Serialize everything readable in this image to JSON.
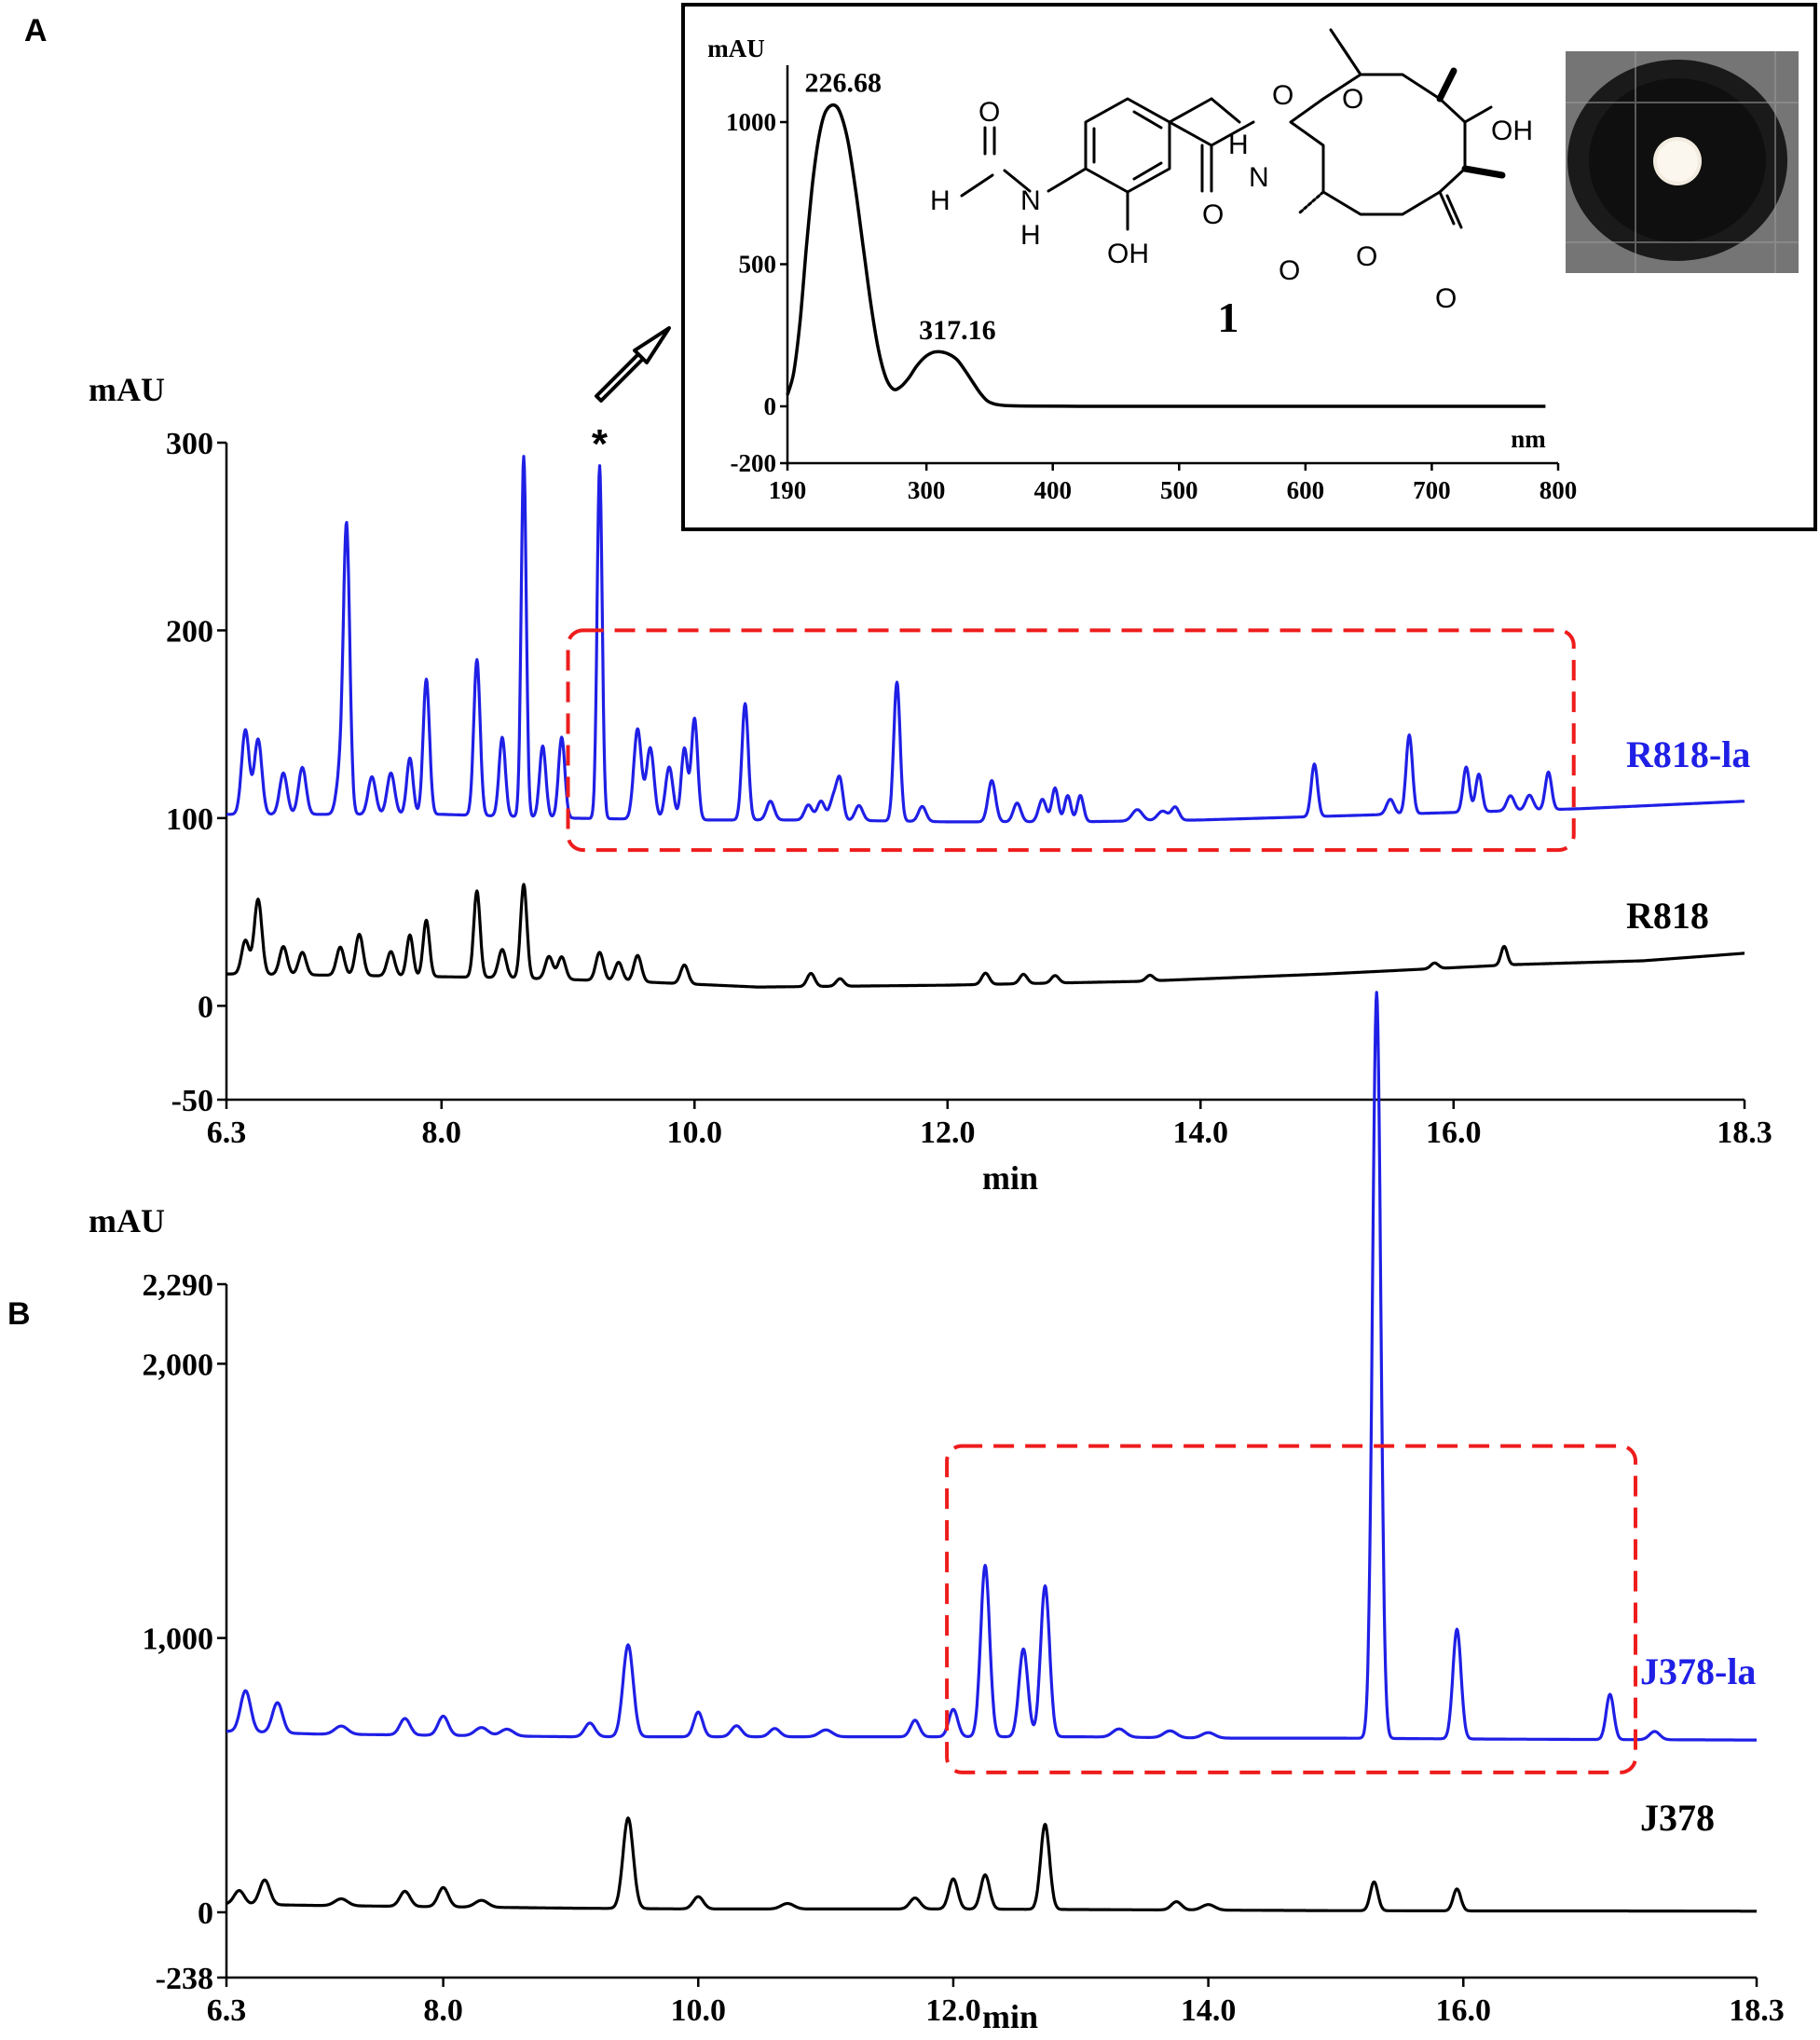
{
  "panels": {
    "a_letter": "A",
    "b_letter": "B"
  },
  "chart_data": [
    {
      "id": "panelA",
      "type": "line",
      "xlabel": "min",
      "ylabel": "mAU",
      "xlim": [
        6.3,
        18.3
      ],
      "ylim": [
        -50,
        300
      ],
      "x_ticks": [
        "6.3",
        "8.0",
        "10.0",
        "12.0",
        "14.0",
        "16.0",
        "18.3"
      ],
      "x_tick_values": [
        6.3,
        8.0,
        10.0,
        12.0,
        14.0,
        16.0,
        18.3
      ],
      "y_ticks": [
        "300",
        "200",
        "100",
        "0",
        "-50"
      ],
      "y_tick_values": [
        300,
        200,
        100,
        0,
        -50
      ],
      "highlight_box": {
        "x": [
          9.0,
          16.95
        ],
        "y": [
          83,
          200
        ]
      },
      "marker": {
        "label": "*",
        "x": 9.25,
        "y": 288
      },
      "series": [
        {
          "name": "R818-la",
          "color": "#1f1fe6",
          "baseline": [
            [
              6.3,
              102
            ],
            [
              8.0,
              102
            ],
            [
              9.0,
              100
            ],
            [
              10.0,
              99
            ],
            [
              11.0,
              99
            ],
            [
              12.0,
              98
            ],
            [
              13.0,
              98
            ],
            [
              14.0,
              99
            ],
            [
              15.0,
              101
            ],
            [
              16.0,
              103
            ],
            [
              17.0,
              105
            ],
            [
              18.3,
              109
            ]
          ],
          "peaks": [
            [
              6.45,
              45,
              0.03
            ],
            [
              6.55,
              40,
              0.03
            ],
            [
              6.75,
              22,
              0.03
            ],
            [
              6.9,
              25,
              0.03
            ],
            [
              7.2,
              22,
              0.03
            ],
            [
              7.25,
              150,
              0.025
            ],
            [
              7.45,
              20,
              0.03
            ],
            [
              7.6,
              22,
              0.03
            ],
            [
              7.75,
              30,
              0.025
            ],
            [
              7.88,
              72,
              0.025
            ],
            [
              8.28,
              83,
              0.025
            ],
            [
              8.48,
              42,
              0.025
            ],
            [
              8.65,
              192,
              0.02
            ],
            [
              8.8,
              38,
              0.025
            ],
            [
              8.95,
              43,
              0.025
            ],
            [
              9.25,
              188,
              0.02
            ],
            [
              9.55,
              48,
              0.03
            ],
            [
              9.65,
              38,
              0.03
            ],
            [
              9.8,
              28,
              0.03
            ],
            [
              9.92,
              38,
              0.025
            ],
            [
              10.0,
              54,
              0.025
            ],
            [
              10.4,
              62,
              0.025
            ],
            [
              10.6,
              10,
              0.03
            ],
            [
              10.9,
              8,
              0.03
            ],
            [
              11.0,
              10,
              0.03
            ],
            [
              11.1,
              12,
              0.03
            ],
            [
              11.15,
              20,
              0.025
            ],
            [
              11.3,
              8,
              0.03
            ],
            [
              11.6,
              74,
              0.025
            ],
            [
              11.8,
              8,
              0.03
            ],
            [
              12.35,
              22,
              0.03
            ],
            [
              12.55,
              10,
              0.03
            ],
            [
              12.75,
              12,
              0.03
            ],
            [
              12.85,
              18,
              0.025
            ],
            [
              12.95,
              14,
              0.025
            ],
            [
              13.05,
              14,
              0.025
            ],
            [
              13.5,
              6,
              0.04
            ],
            [
              13.7,
              5,
              0.04
            ],
            [
              13.8,
              7,
              0.03
            ],
            [
              14.9,
              28,
              0.025
            ],
            [
              15.5,
              8,
              0.03
            ],
            [
              15.65,
              42,
              0.025
            ],
            [
              16.1,
              24,
              0.025
            ],
            [
              16.2,
              20,
              0.025
            ],
            [
              16.45,
              8,
              0.03
            ],
            [
              16.6,
              8,
              0.03
            ],
            [
              16.75,
              20,
              0.025
            ]
          ]
        },
        {
          "name": "R818",
          "color": "#000000",
          "baseline": [
            [
              6.3,
              17
            ],
            [
              7.5,
              16
            ],
            [
              8.5,
              15
            ],
            [
              9.5,
              13
            ],
            [
              10.5,
              10
            ],
            [
              12.0,
              11
            ],
            [
              13.5,
              13
            ],
            [
              15.0,
              17
            ],
            [
              16.5,
              22
            ],
            [
              17.5,
              24
            ],
            [
              18.3,
              28
            ]
          ],
          "peaks": [
            [
              6.45,
              18,
              0.03
            ],
            [
              6.55,
              40,
              0.03
            ],
            [
              6.75,
              15,
              0.03
            ],
            [
              6.9,
              12,
              0.03
            ],
            [
              7.2,
              15,
              0.03
            ],
            [
              7.35,
              22,
              0.03
            ],
            [
              7.6,
              13,
              0.03
            ],
            [
              7.75,
              22,
              0.025
            ],
            [
              7.88,
              30,
              0.025
            ],
            [
              8.28,
              46,
              0.025
            ],
            [
              8.48,
              15,
              0.03
            ],
            [
              8.65,
              50,
              0.025
            ],
            [
              8.85,
              12,
              0.03
            ],
            [
              8.95,
              12,
              0.03
            ],
            [
              9.25,
              15,
              0.03
            ],
            [
              9.4,
              10,
              0.03
            ],
            [
              9.55,
              14,
              0.03
            ],
            [
              9.92,
              10,
              0.03
            ],
            [
              10.92,
              7,
              0.03
            ],
            [
              11.15,
              4,
              0.03
            ],
            [
              12.3,
              6,
              0.03
            ],
            [
              12.6,
              5,
              0.03
            ],
            [
              12.85,
              4,
              0.03
            ],
            [
              13.6,
              3,
              0.03
            ],
            [
              15.85,
              3,
              0.03
            ],
            [
              16.4,
              10,
              0.025
            ]
          ]
        }
      ]
    },
    {
      "id": "panelB",
      "type": "line",
      "xlabel": "min",
      "ylabel": "mAU",
      "xlim": [
        6.3,
        18.3
      ],
      "ylim": [
        -238,
        2290
      ],
      "x_ticks": [
        "6.3",
        "8.0",
        "10.0",
        "12.0",
        "14.0",
        "16.0",
        "18.3"
      ],
      "x_tick_values": [
        6.3,
        8.0,
        10.0,
        12.0,
        14.0,
        16.0,
        18.3
      ],
      "y_ticks": [
        "2,290",
        "2,000",
        "1,000",
        "0",
        "-238"
      ],
      "y_tick_values": [
        2290,
        2000,
        1000,
        0,
        -238
      ],
      "highlight_box": {
        "x": [
          11.95,
          17.35
        ],
        "y": [
          510,
          1700
        ]
      },
      "series": [
        {
          "name": "J378-la",
          "color": "#1f1fe6",
          "baseline": [
            [
              6.3,
              660
            ],
            [
              7.0,
              650
            ],
            [
              8.0,
              645
            ],
            [
              9.0,
              640
            ],
            [
              10.0,
              640
            ],
            [
              11.0,
              640
            ],
            [
              12.0,
              640
            ],
            [
              13.0,
              640
            ],
            [
              14.0,
              635
            ],
            [
              15.0,
              635
            ],
            [
              16.0,
              632
            ],
            [
              17.0,
              630
            ],
            [
              18.3,
              628
            ]
          ],
          "peaks": [
            [
              6.45,
              150,
              0.04
            ],
            [
              6.7,
              110,
              0.04
            ],
            [
              7.2,
              30,
              0.05
            ],
            [
              7.7,
              60,
              0.04
            ],
            [
              8.0,
              70,
              0.04
            ],
            [
              8.3,
              30,
              0.05
            ],
            [
              8.5,
              25,
              0.05
            ],
            [
              9.15,
              50,
              0.04
            ],
            [
              9.45,
              335,
              0.04
            ],
            [
              10.0,
              90,
              0.035
            ],
            [
              10.3,
              40,
              0.04
            ],
            [
              10.6,
              30,
              0.04
            ],
            [
              11.0,
              25,
              0.05
            ],
            [
              11.7,
              60,
              0.035
            ],
            [
              12.0,
              100,
              0.035
            ],
            [
              12.25,
              625,
              0.035
            ],
            [
              12.55,
              320,
              0.035
            ],
            [
              12.72,
              550,
              0.035
            ],
            [
              13.3,
              30,
              0.05
            ],
            [
              13.7,
              25,
              0.05
            ],
            [
              14.0,
              20,
              0.05
            ],
            [
              15.32,
              2720,
              0.032
            ],
            [
              15.95,
              400,
              0.032
            ],
            [
              17.15,
              165,
              0.03
            ],
            [
              17.5,
              30,
              0.04
            ]
          ]
        },
        {
          "name": "J378",
          "color": "#000000",
          "baseline": [
            [
              6.3,
              30
            ],
            [
              7.0,
              25
            ],
            [
              8.0,
              20
            ],
            [
              9.0,
              15
            ],
            [
              10.0,
              12
            ],
            [
              11.0,
              12
            ],
            [
              12.0,
              12
            ],
            [
              13.0,
              10
            ],
            [
              14.0,
              8
            ],
            [
              15.0,
              6
            ],
            [
              16.0,
              5
            ],
            [
              17.0,
              5
            ],
            [
              18.3,
              4
            ]
          ],
          "peaks": [
            [
              6.4,
              50,
              0.04
            ],
            [
              6.6,
              90,
              0.04
            ],
            [
              7.2,
              25,
              0.05
            ],
            [
              7.7,
              55,
              0.04
            ],
            [
              8.0,
              70,
              0.04
            ],
            [
              8.3,
              25,
              0.05
            ],
            [
              9.45,
              330,
              0.04
            ],
            [
              10.0,
              45,
              0.04
            ],
            [
              10.7,
              20,
              0.05
            ],
            [
              11.7,
              40,
              0.04
            ],
            [
              12.0,
              110,
              0.035
            ],
            [
              12.25,
              125,
              0.035
            ],
            [
              12.72,
              310,
              0.035
            ],
            [
              13.75,
              30,
              0.04
            ],
            [
              14.0,
              20,
              0.05
            ],
            [
              15.3,
              105,
              0.03
            ],
            [
              15.95,
              80,
              0.03
            ]
          ]
        }
      ]
    },
    {
      "id": "inset",
      "type": "line",
      "xlabel": "nm",
      "ylabel": "mAU",
      "xlim": [
        190,
        800
      ],
      "ylim": [
        -200,
        1200
      ],
      "x_ticks": [
        "190",
        "300",
        "400",
        "500",
        "600",
        "700",
        "800"
      ],
      "x_tick_values": [
        190,
        300,
        400,
        500,
        600,
        700,
        800
      ],
      "y_ticks": [
        "1000",
        "500",
        "0",
        "-200"
      ],
      "y_tick_values": [
        1000,
        500,
        0,
        -200
      ],
      "peak_labels": [
        {
          "text": "226.68",
          "x": 226.68,
          "y": 1060
        },
        {
          "text": "317.16",
          "x": 317.16,
          "y": 190
        }
      ],
      "series": [
        {
          "name": "",
          "color": "#000000",
          "points": [
            [
              190,
              40
            ],
            [
              195,
              120
            ],
            [
              200,
              300
            ],
            [
              205,
              560
            ],
            [
              210,
              790
            ],
            [
              215,
              950
            ],
            [
              220,
              1035
            ],
            [
              226.68,
              1060
            ],
            [
              232,
              1030
            ],
            [
              238,
              930
            ],
            [
              244,
              760
            ],
            [
              250,
              560
            ],
            [
              256,
              360
            ],
            [
              262,
              200
            ],
            [
              268,
              100
            ],
            [
              274,
              60
            ],
            [
              280,
              70
            ],
            [
              286,
              100
            ],
            [
              292,
              140
            ],
            [
              298,
              170
            ],
            [
              304,
              188
            ],
            [
              310,
              192
            ],
            [
              317,
              185
            ],
            [
              324,
              165
            ],
            [
              330,
              130
            ],
            [
              336,
              90
            ],
            [
              342,
              50
            ],
            [
              348,
              20
            ],
            [
              354,
              8
            ],
            [
              362,
              3
            ],
            [
              380,
              1
            ],
            [
              420,
              0
            ],
            [
              500,
              0
            ],
            [
              600,
              0
            ],
            [
              700,
              0
            ],
            [
              760,
              0
            ],
            [
              790,
              0
            ]
          ]
        }
      ]
    }
  ],
  "inset_structure": {
    "compound_number": "1",
    "atom_labels": [
      "O",
      "H",
      "N",
      "H",
      "OH",
      "O",
      "H",
      "N",
      "O",
      "O",
      "O",
      "OH",
      "O",
      "O"
    ]
  }
}
